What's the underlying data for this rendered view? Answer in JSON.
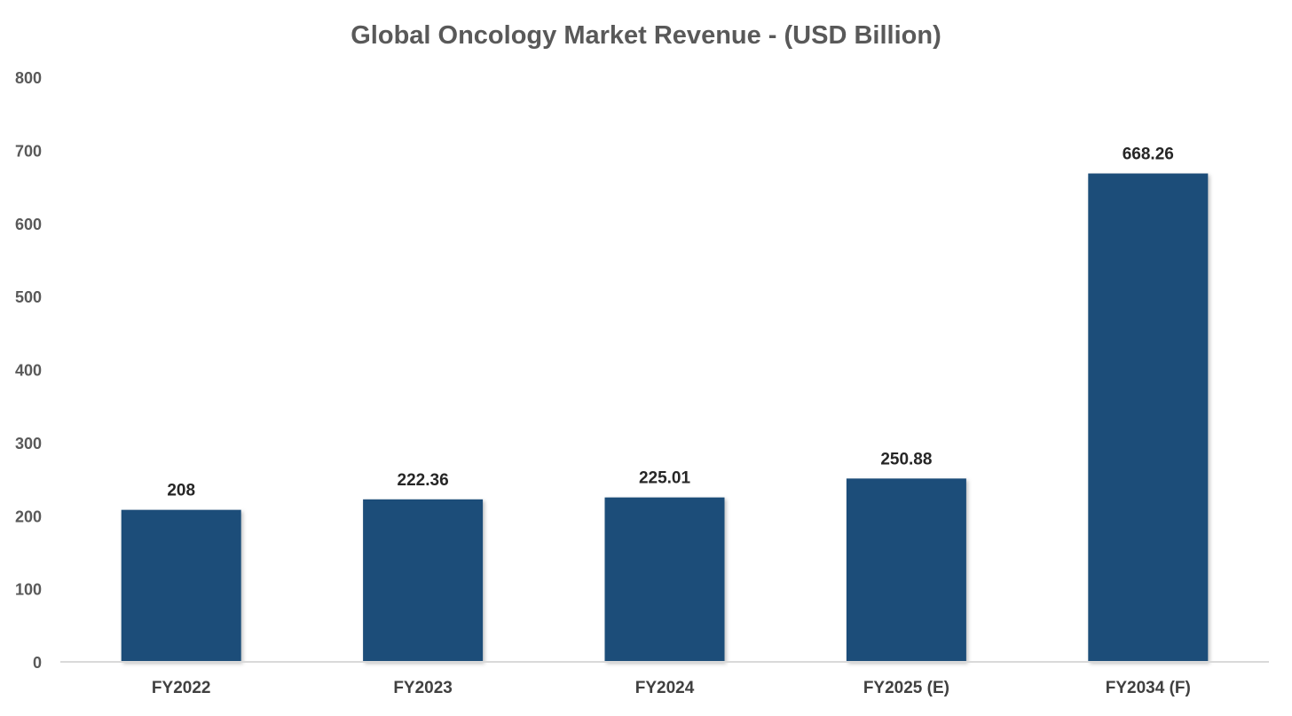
{
  "chart_data": {
    "type": "bar",
    "title": "Global Oncology Market Revenue - (USD Billion)",
    "xlabel": "",
    "ylabel": "",
    "categories": [
      "FY2022",
      "FY2023",
      "FY2024",
      "FY2025 (E)",
      "FY2034 (F)"
    ],
    "values": [
      208,
      222.36,
      225.01,
      250.88,
      668.26
    ],
    "data_labels": [
      "208",
      "222.36",
      "225.01",
      "250.88",
      "668.26"
    ],
    "ylim": [
      0,
      800
    ],
    "yticks": [
      0,
      100,
      200,
      300,
      400,
      500,
      600,
      700,
      800
    ],
    "grid": false,
    "legend": "none",
    "bar_color": "#1f4e79"
  }
}
